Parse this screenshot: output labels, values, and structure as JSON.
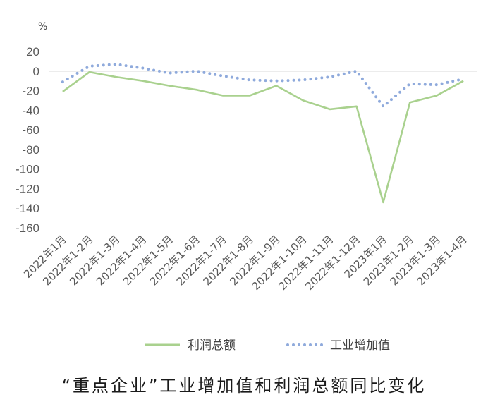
{
  "chart_data": {
    "type": "line",
    "title": "“重点企业”工业增加值和利润总额同比变化",
    "ylabel": "%",
    "xlabel": "",
    "ylim": [
      -160,
      20
    ],
    "yticks": [
      20,
      0,
      -20,
      -40,
      -60,
      -80,
      -100,
      -120,
      -140,
      -160
    ],
    "categories": [
      "2022年1月",
      "2022年1-2月",
      "2022年1-3月",
      "2022年1-4月",
      "2022年1-5月",
      "2022年1-6月",
      "2022年1-7月",
      "2022年1-8月",
      "2022年1-9月",
      "2022年1-10月",
      "2022年1-11月",
      "2022年1-12月",
      "2023年1月",
      "2023年1-2月",
      "2023年1-3月",
      "2023年1-4月"
    ],
    "series": [
      {
        "name": "利润总额",
        "color": "#a9d18e",
        "style": "solid",
        "values": [
          -21,
          -1,
          -6,
          -10,
          -15,
          -19,
          -25,
          -25,
          -15,
          -30,
          -39,
          -36,
          -134,
          -32,
          -25,
          -10
        ]
      },
      {
        "name": "工业增加值",
        "color": "#8faadc",
        "style": "dotted",
        "values": [
          -11,
          5,
          7,
          3,
          -2,
          0,
          -5,
          -9,
          -10,
          -9,
          -6,
          0,
          -36,
          -13,
          -14,
          -8
        ]
      }
    ],
    "grid": false,
    "legend_position": "bottom"
  }
}
